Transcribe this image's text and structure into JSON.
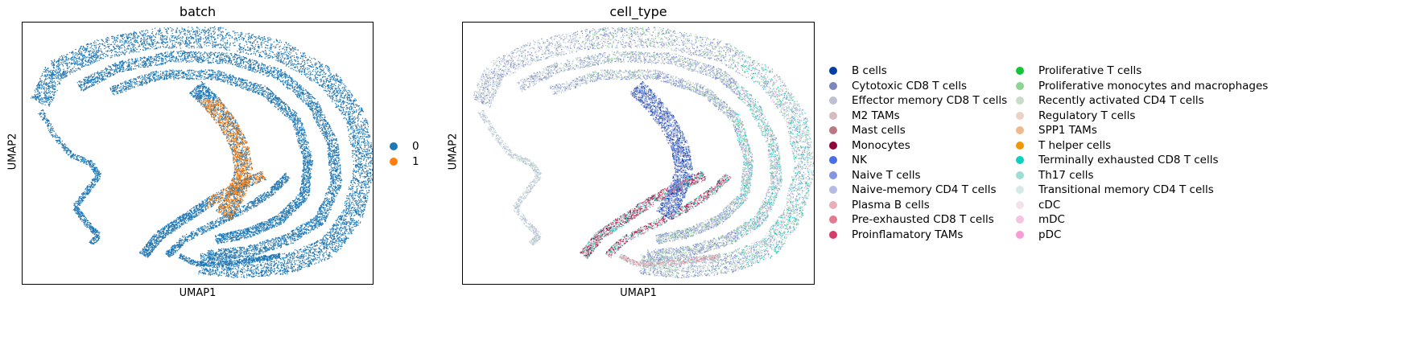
{
  "chart_data": [
    {
      "type": "scatter",
      "title": "batch",
      "xlabel": "UMAP1",
      "ylabel": "UMAP2",
      "grid": false,
      "legend_position": "right",
      "legend": [
        {
          "label": "0",
          "color": "#1f77b4"
        },
        {
          "label": "1",
          "color": "#ff7f0e"
        }
      ]
    },
    {
      "type": "scatter",
      "title": "cell_type",
      "xlabel": "UMAP1",
      "ylabel": "UMAP2",
      "grid": false,
      "legend_position": "right",
      "legend": [
        {
          "label": "B cells",
          "color": "#023fa5"
        },
        {
          "label": "Cytotoxic CD8 T cells",
          "color": "#7d87b9"
        },
        {
          "label": "Effector memory CD8 T cells",
          "color": "#bec1d4"
        },
        {
          "label": "M2 TAMs",
          "color": "#d6bcc0"
        },
        {
          "label": "Mast cells",
          "color": "#bb7784"
        },
        {
          "label": "Monocytes",
          "color": "#8e063b"
        },
        {
          "label": "NK",
          "color": "#4a6fe3"
        },
        {
          "label": "Naive T cells",
          "color": "#8595e1"
        },
        {
          "label": "Naive-memory CD4 T cells",
          "color": "#b5bbe3"
        },
        {
          "label": "Plasma B cells",
          "color": "#e6afb9"
        },
        {
          "label": "Pre-exhausted CD8 T cells",
          "color": "#e07b91"
        },
        {
          "label": "Proinflamatory TAMs",
          "color": "#d33f6a"
        },
        {
          "label": "Proliferative T cells",
          "color": "#11c638"
        },
        {
          "label": "Proliferative monocytes and macrophages",
          "color": "#8dd593"
        },
        {
          "label": "Recently activated CD4 T cells",
          "color": "#c6dec7"
        },
        {
          "label": "Regulatory T cells",
          "color": "#ead3c6"
        },
        {
          "label": "SPP1 TAMs",
          "color": "#f0b98d"
        },
        {
          "label": "T helper cells",
          "color": "#ef9708"
        },
        {
          "label": "Terminally exhausted CD8 T cells",
          "color": "#0fcfc0"
        },
        {
          "label": "Th17 cells",
          "color": "#9cded6"
        },
        {
          "label": "Transitional memory CD4 T cells",
          "color": "#d5eae7"
        },
        {
          "label": "cDC",
          "color": "#f3e1eb"
        },
        {
          "label": "mDC",
          "color": "#f6c4e1"
        },
        {
          "label": "pDC",
          "color": "#f79cd4"
        }
      ]
    }
  ]
}
